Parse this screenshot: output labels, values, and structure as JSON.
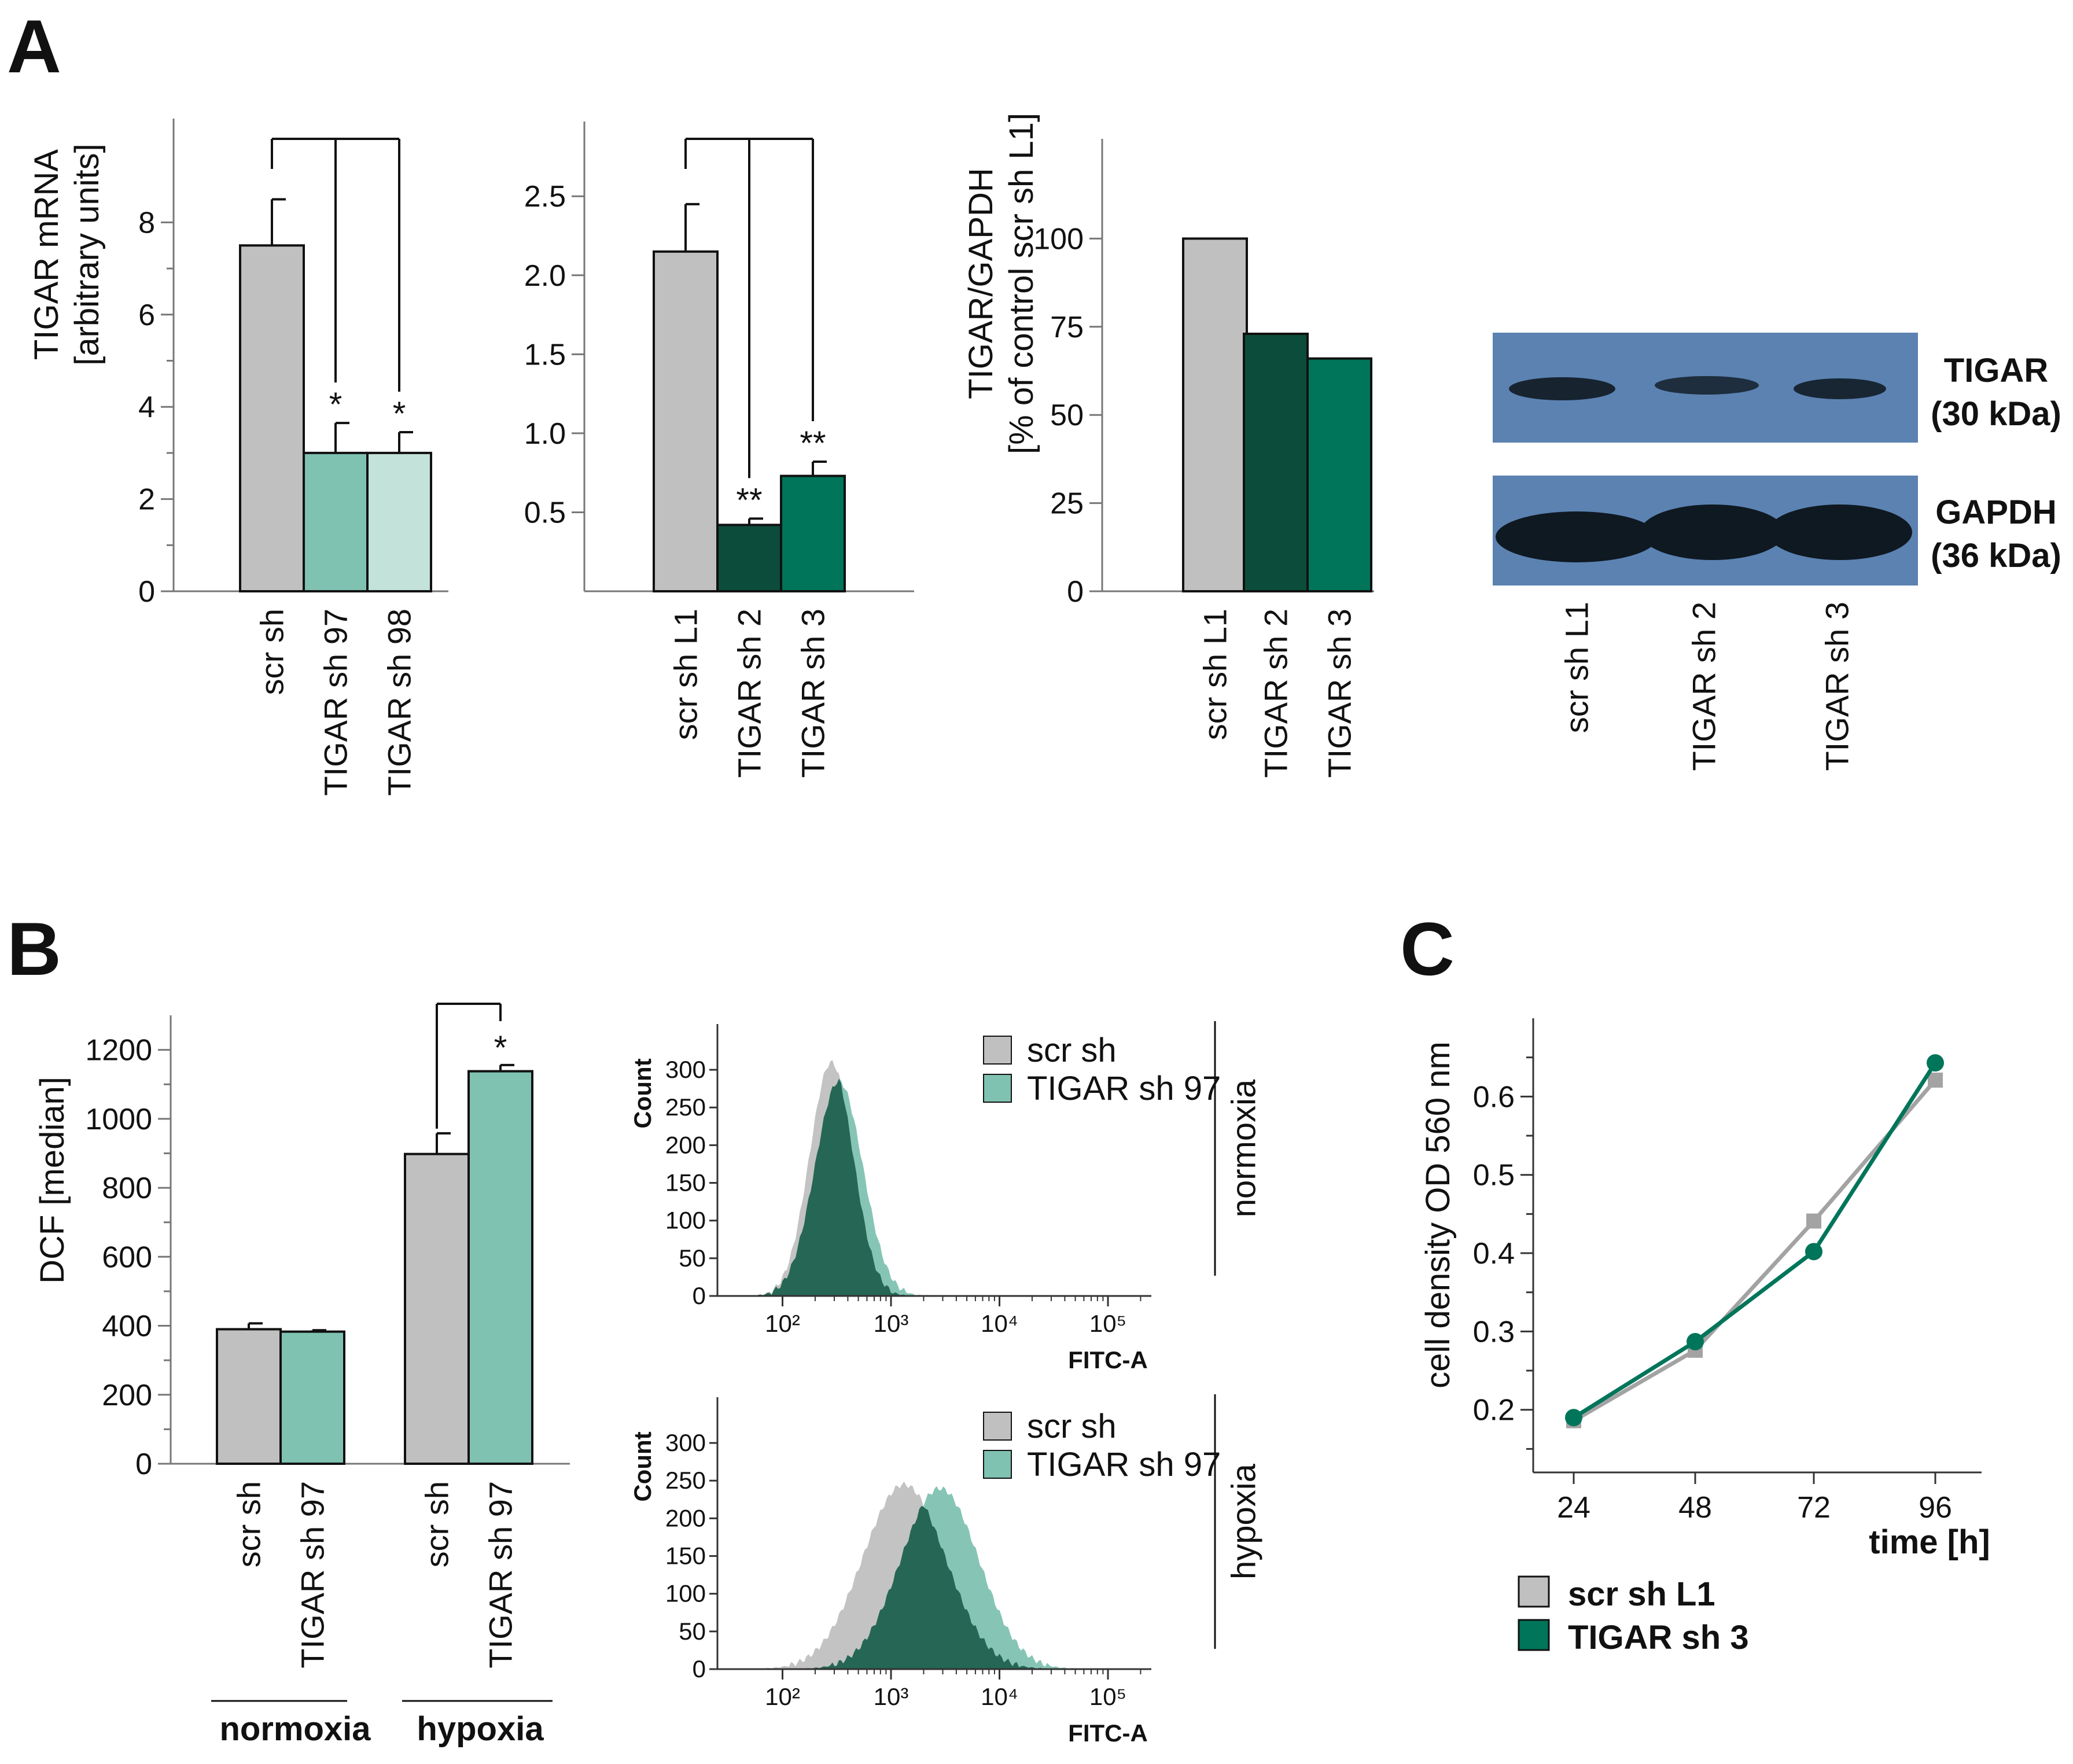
{
  "panels": {
    "a": "A",
    "b": "B",
    "c": "C"
  },
  "colors": {
    "grey": "#bfc0bf",
    "teal_light": "#7fc2b1",
    "teal_pale": "#c3e2d9",
    "green_dark": "#0c4c3a",
    "green_mid": "#00755a",
    "blot_bg": "#5b82b1",
    "blot_band": "#0f1922"
  },
  "chart_data": [
    {
      "id": "a1",
      "type": "bar",
      "ylabel": "TIGAR mRNA",
      "ylabel2": "[arbitrary units]",
      "ylim": [
        0,
        10
      ],
      "yticks": [
        0,
        2,
        4,
        6,
        8
      ],
      "ytick_labels": [
        "0",
        "2",
        "4",
        "6",
        "8"
      ],
      "categories": [
        "scr sh",
        "TIGAR sh 97",
        "TIGAR sh 98"
      ],
      "values": [
        7.5,
        3.0,
        3.0
      ],
      "errors": [
        1.0,
        0.65,
        0.45
      ],
      "significance": [
        "",
        "*",
        "*"
      ]
    },
    {
      "id": "a2",
      "type": "bar",
      "ylim": [
        0,
        2.9
      ],
      "yticks": [
        0.5,
        1.0,
        1.5,
        2.0,
        2.5
      ],
      "ytick_labels": [
        "0.5",
        "1.0",
        "1.5",
        "2.0",
        "2.5"
      ],
      "categories": [
        "scr sh L1",
        "TIGAR sh 2",
        "TIGAR sh 3"
      ],
      "values": [
        2.15,
        0.42,
        0.73
      ],
      "errors": [
        0.3,
        0.04,
        0.09
      ],
      "significance": [
        "",
        "**",
        "**"
      ]
    },
    {
      "id": "a3",
      "type": "bar",
      "ylabel": "TIGAR/GAPDH",
      "ylabel2": "[% of control scr sh L1]",
      "ylim": [
        0,
        125
      ],
      "yticks": [
        0,
        25,
        50,
        75,
        100
      ],
      "ytick_labels": [
        "0",
        "25",
        "50",
        "75",
        "100"
      ],
      "categories": [
        "scr sh L1",
        "TIGAR sh 2",
        "TIGAR sh 3"
      ],
      "values": [
        100,
        73,
        66
      ]
    },
    {
      "id": "b1",
      "type": "bar",
      "ylabel": "DCF [median]",
      "ylim": [
        0,
        1300
      ],
      "yticks": [
        0,
        200,
        400,
        600,
        800,
        1000,
        1200
      ],
      "ytick_labels": [
        "0",
        "200",
        "400",
        "600",
        "800",
        "1000",
        "1200"
      ],
      "groups": [
        "normoxia",
        "hypoxia"
      ],
      "categories": [
        "scr sh",
        "TIGAR sh 97",
        "scr sh",
        "TIGAR sh 97"
      ],
      "values": [
        390,
        383,
        898,
        1138
      ],
      "errors": [
        17,
        4,
        60,
        18
      ],
      "significance": [
        "",
        "",
        "",
        "*"
      ]
    },
    {
      "id": "b_hist_normoxia",
      "type": "area",
      "condition": "normoxia",
      "xlabel": "FITC-A",
      "ylabel": "Count",
      "x_log_ticks": [
        2,
        3,
        4,
        5
      ],
      "x_tick_labels": [
        "10²",
        "10³",
        "10⁴",
        "10⁵"
      ],
      "ylim": [
        0,
        330
      ],
      "yticks": [
        0,
        50,
        100,
        150,
        200,
        250,
        300
      ],
      "ytick_labels": [
        "0",
        "50",
        "100",
        "150",
        "200",
        "250",
        "300"
      ],
      "series": [
        {
          "name": "scr sh",
          "peak_log": 2.45,
          "sigma": 0.2,
          "peak": 310
        },
        {
          "name": "TIGAR sh 97",
          "peak_log": 2.52,
          "sigma": 0.22,
          "peak": 285
        }
      ]
    },
    {
      "id": "b_hist_hypoxia",
      "type": "area",
      "condition": "hypoxia",
      "xlabel": "FITC-A",
      "ylabel": "Count",
      "x_log_ticks": [
        2,
        3,
        4,
        5
      ],
      "x_tick_labels": [
        "10²",
        "10³",
        "10⁴",
        "10⁵"
      ],
      "ylim": [
        0,
        330
      ],
      "yticks": [
        0,
        50,
        100,
        150,
        200,
        250,
        300
      ],
      "ytick_labels": [
        "0",
        "50",
        "100",
        "150",
        "200",
        "250",
        "300"
      ],
      "series": [
        {
          "name": "scr sh",
          "peak_log": 3.12,
          "sigma": 0.38,
          "peak": 245
        },
        {
          "name": "TIGAR sh 97",
          "peak_log": 3.45,
          "sigma": 0.36,
          "peak": 240
        }
      ]
    },
    {
      "id": "c",
      "type": "line",
      "xlabel": "time [h]",
      "ylabel": "cell density OD 560 nm",
      "x": [
        24,
        48,
        72,
        96
      ],
      "xticks": [
        "24",
        "48",
        "72",
        "96"
      ],
      "ylim": [
        0.12,
        0.7
      ],
      "yticks": [
        0.2,
        0.3,
        0.4,
        0.5,
        0.6
      ],
      "ytick_labels": [
        "0.2",
        "0.3",
        "0.4",
        "0.5",
        "0.6"
      ],
      "series": [
        {
          "name": "scr sh L1",
          "values": [
            0.186,
            0.276,
            0.441,
            0.621
          ]
        },
        {
          "name": "TIGAR sh 3",
          "values": [
            0.19,
            0.287,
            0.402,
            0.643
          ]
        }
      ]
    }
  ],
  "blot": {
    "lanes": [
      "scr sh L1",
      "TIGAR sh 2",
      "TIGAR sh 3"
    ],
    "tigar_label": "TIGAR",
    "tigar_kda": "(30 kDa)",
    "gapdh_label": "GAPDH",
    "gapdh_kda": "(36 kDa)"
  }
}
